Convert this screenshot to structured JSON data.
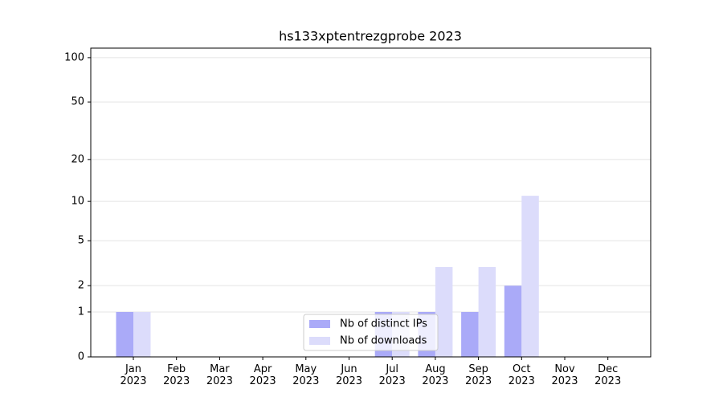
{
  "chart_data": {
    "type": "bar",
    "title": "hs133xptentrezgprobe 2023",
    "categories": [
      "Jan\n2023",
      "Feb\n2023",
      "Mar\n2023",
      "Apr\n2023",
      "May\n2023",
      "Jun\n2023",
      "Jul\n2023",
      "Aug\n2023",
      "Sep\n2023",
      "Oct\n2023",
      "Nov\n2023",
      "Dec\n2023"
    ],
    "series": [
      {
        "name": "Nb of distinct IPs",
        "color": "#aaaaf8",
        "values": [
          1,
          0,
          0,
          0,
          0,
          0,
          1,
          1,
          1,
          2,
          0,
          0
        ]
      },
      {
        "name": "Nb of downloads",
        "color": "#dcdcfb",
        "values": [
          1,
          0,
          0,
          0,
          0,
          0,
          1,
          3,
          3,
          11,
          0,
          0
        ]
      }
    ],
    "yscale": "log1p",
    "ylim": [
      0,
      116
    ],
    "yticks": [
      0,
      1,
      2,
      5,
      10,
      20,
      50,
      100
    ],
    "grid": true,
    "legend": "lower center"
  }
}
